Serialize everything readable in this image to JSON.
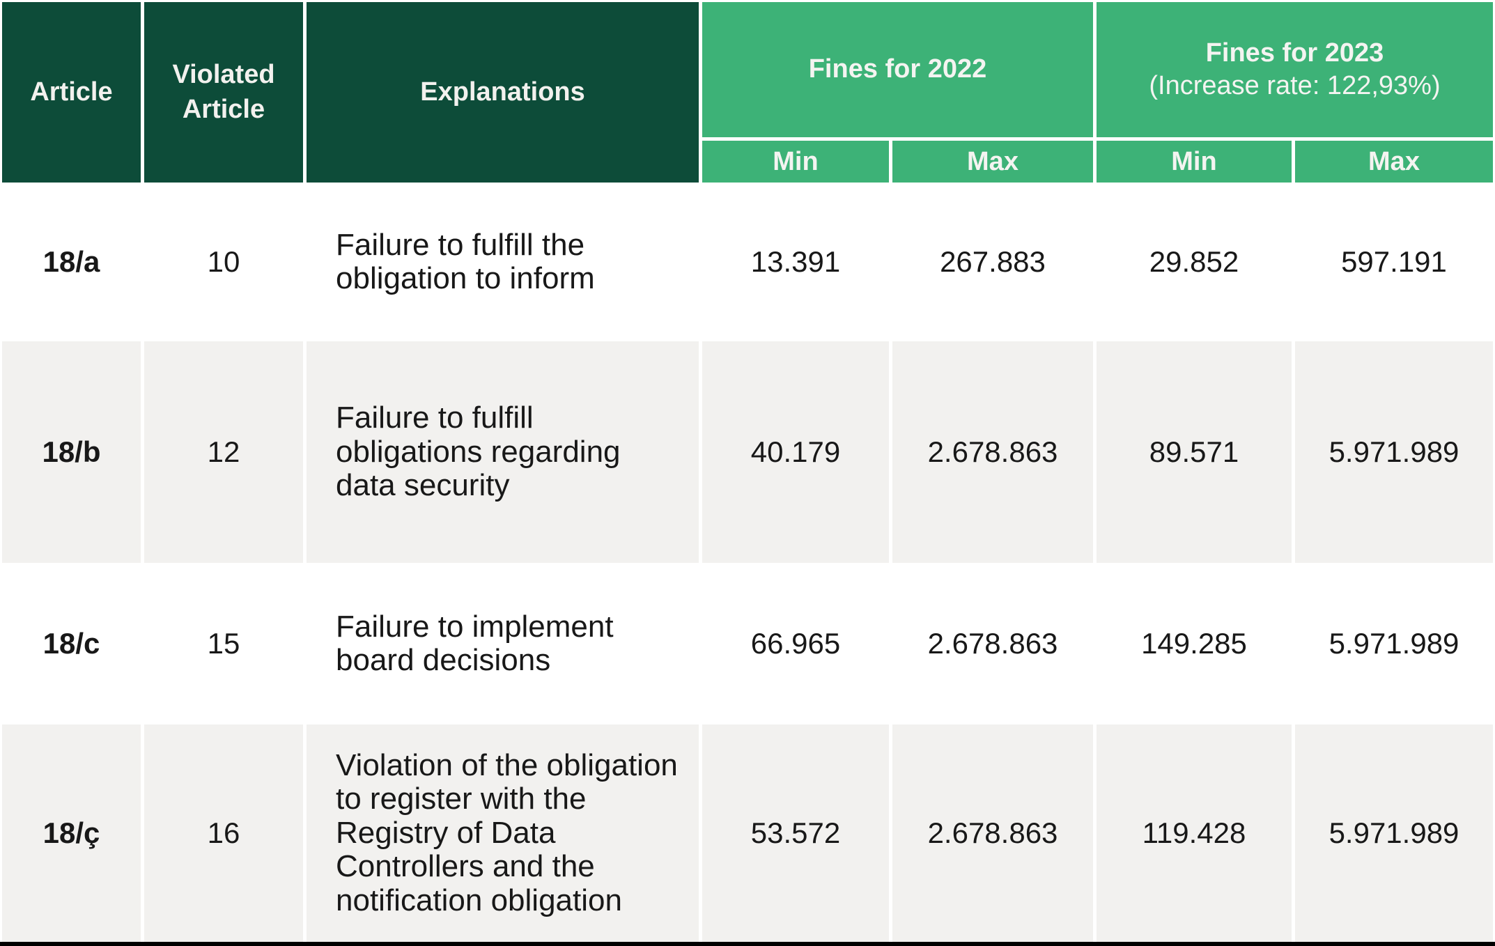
{
  "table": {
    "column_headers": {
      "article": "Article",
      "violated_article": "Violated Article",
      "explanations": "Explanations"
    },
    "groups": [
      {
        "title": "Fines for 2022",
        "subtitle": ""
      },
      {
        "title": "Fines for 2023",
        "subtitle": "(Increase rate: 122,93%)"
      }
    ],
    "subheaders": [
      "Min",
      "Max",
      "Min",
      "Max"
    ],
    "rows": [
      {
        "article": "18/a",
        "violated_article": "10",
        "explanation": "Failure to fulfill the obligation to inform",
        "fines_2022_min": "13.391",
        "fines_2022_max": "267.883",
        "fines_2023_min": "29.852",
        "fines_2023_max": "597.191"
      },
      {
        "article": "18/b",
        "violated_article": "12",
        "explanation": "Failure to fulfill obligations regarding data security",
        "fines_2022_min": "40.179",
        "fines_2022_max": "2.678.863",
        "fines_2023_min": "89.571",
        "fines_2023_max": "5.971.989"
      },
      {
        "article": "18/c",
        "violated_article": "15",
        "explanation": "Failure to implement board decisions",
        "fines_2022_min": "66.965",
        "fines_2022_max": "2.678.863",
        "fines_2023_min": "149.285",
        "fines_2023_max": "5.971.989"
      },
      {
        "article": "18/ç",
        "violated_article": "16",
        "explanation": "Violation of the obligation to register with the Registry of Data Controllers and the notification obligation",
        "fines_2022_min": "53.572",
        "fines_2022_max": "2.678.863",
        "fines_2023_min": "119.428",
        "fines_2023_max": "5.971.989"
      }
    ]
  },
  "theme": {
    "header_dark_green": "#0d4c39",
    "header_light_green": "#3db277",
    "row_alt_gray": "#f2f1ef",
    "bottom_border_black": "#000000",
    "header_text": "#f2f1ee",
    "body_text": "#181818"
  }
}
